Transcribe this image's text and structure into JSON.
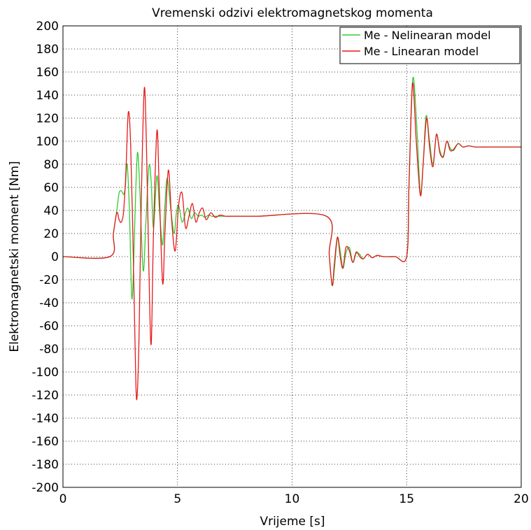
{
  "chart_data": {
    "type": "line",
    "title": "Vremenski odzivi elektromagnetskog momenta",
    "xlabel": "Vrijeme [s]",
    "ylabel": "Elektromagnetski moment [Nm]",
    "xlim": [
      0,
      20
    ],
    "ylim": [
      -200,
      200
    ],
    "xticks": [
      0,
      5,
      10,
      15,
      20
    ],
    "yticks": [
      -200,
      -180,
      -160,
      -140,
      -120,
      -100,
      -80,
      -60,
      -40,
      -20,
      0,
      20,
      40,
      60,
      80,
      100,
      120,
      140,
      160,
      180,
      200
    ],
    "grid": true,
    "legend_position": "top-right",
    "series": [
      {
        "name": "Me - Nelinearan model",
        "color": "#33cc33",
        "x": [
          0,
          2.05,
          2.2,
          2.35,
          2.45,
          2.55,
          2.65,
          2.72,
          2.8,
          2.9,
          3.0,
          3.08,
          3.15,
          3.25,
          3.35,
          3.5,
          3.62,
          3.75,
          3.85,
          3.95,
          4.1,
          4.22,
          4.35,
          4.45,
          4.55,
          4.7,
          4.85,
          4.95,
          5.05,
          5.2,
          5.35,
          5.45,
          5.6,
          5.75,
          5.9,
          6.05,
          6.2,
          6.35,
          6.5,
          6.7,
          6.9,
          7.1,
          7.4,
          7.8,
          8.5,
          11.5,
          11.62,
          11.75,
          11.85,
          11.98,
          12.1,
          12.22,
          12.35,
          12.5,
          12.65,
          12.8,
          12.95,
          13.1,
          13.3,
          13.5,
          13.7,
          14.0,
          14.5,
          15.0,
          15.1,
          15.2,
          15.3,
          15.45,
          15.6,
          15.72,
          15.85,
          16.0,
          16.15,
          16.3,
          16.45,
          16.6,
          16.75,
          16.9,
          17.05,
          17.25,
          17.45,
          17.7,
          18.0,
          18.5,
          19.0,
          20.0
        ],
        "values": [
          0,
          0,
          20,
          40,
          55,
          57,
          54,
          60,
          80,
          40,
          -35,
          -10,
          40,
          90,
          60,
          -12,
          30,
          78,
          65,
          25,
          70,
          38,
          10,
          45,
          68,
          42,
          20,
          38,
          44,
          30,
          38,
          42,
          33,
          38,
          35,
          36,
          34,
          36,
          35,
          35,
          35,
          35,
          35,
          35,
          35,
          35,
          2,
          -25,
          -10,
          16,
          5,
          -10,
          3,
          8,
          -5,
          3,
          2,
          -2,
          2,
          -1,
          1,
          0,
          0,
          0,
          60,
          130,
          155,
          110,
          55,
          80,
          122,
          100,
          80,
          106,
          92,
          86,
          100,
          94,
          92,
          98,
          95,
          96,
          95,
          95,
          95,
          95
        ]
      },
      {
        "name": "Me - Linearan model",
        "color": "#e41a1c",
        "x": [
          0,
          2.05,
          2.2,
          2.35,
          2.45,
          2.55,
          2.65,
          2.75,
          2.85,
          2.95,
          3.05,
          3.15,
          3.22,
          3.32,
          3.42,
          3.55,
          3.65,
          3.75,
          3.85,
          3.95,
          4.1,
          4.2,
          4.35,
          4.45,
          4.6,
          4.75,
          4.9,
          5.05,
          5.2,
          5.35,
          5.5,
          5.65,
          5.8,
          5.95,
          6.1,
          6.25,
          6.45,
          6.65,
          6.85,
          7.1,
          7.4,
          7.8,
          8.5,
          11.5,
          11.62,
          11.75,
          11.85,
          11.98,
          12.1,
          12.22,
          12.35,
          12.5,
          12.65,
          12.8,
          12.95,
          13.1,
          13.3,
          13.5,
          13.7,
          14.0,
          14.5,
          15.0,
          15.1,
          15.2,
          15.28,
          15.42,
          15.6,
          15.72,
          15.87,
          16.0,
          16.15,
          16.3,
          16.45,
          16.6,
          16.75,
          16.9,
          17.05,
          17.25,
          17.45,
          17.7,
          18.0,
          18.5,
          19.0,
          20.0
        ],
        "values": [
          0,
          0,
          20,
          38,
          32,
          30,
          40,
          75,
          125,
          100,
          20,
          -80,
          -124,
          -70,
          50,
          146,
          90,
          -10,
          -76,
          20,
          109,
          60,
          -23,
          20,
          75,
          30,
          5,
          45,
          55,
          25,
          35,
          46,
          30,
          38,
          42,
          32,
          38,
          34,
          36,
          35,
          35,
          35,
          35,
          35,
          2,
          -25,
          -5,
          17,
          0,
          -10,
          8,
          5,
          -5,
          4,
          0,
          -2,
          2,
          -1,
          1,
          0,
          0,
          0,
          60,
          125,
          150,
          100,
          53,
          80,
          120,
          95,
          78,
          106,
          90,
          87,
          100,
          92,
          93,
          98,
          95,
          96,
          95,
          95,
          95,
          95
        ]
      }
    ]
  }
}
